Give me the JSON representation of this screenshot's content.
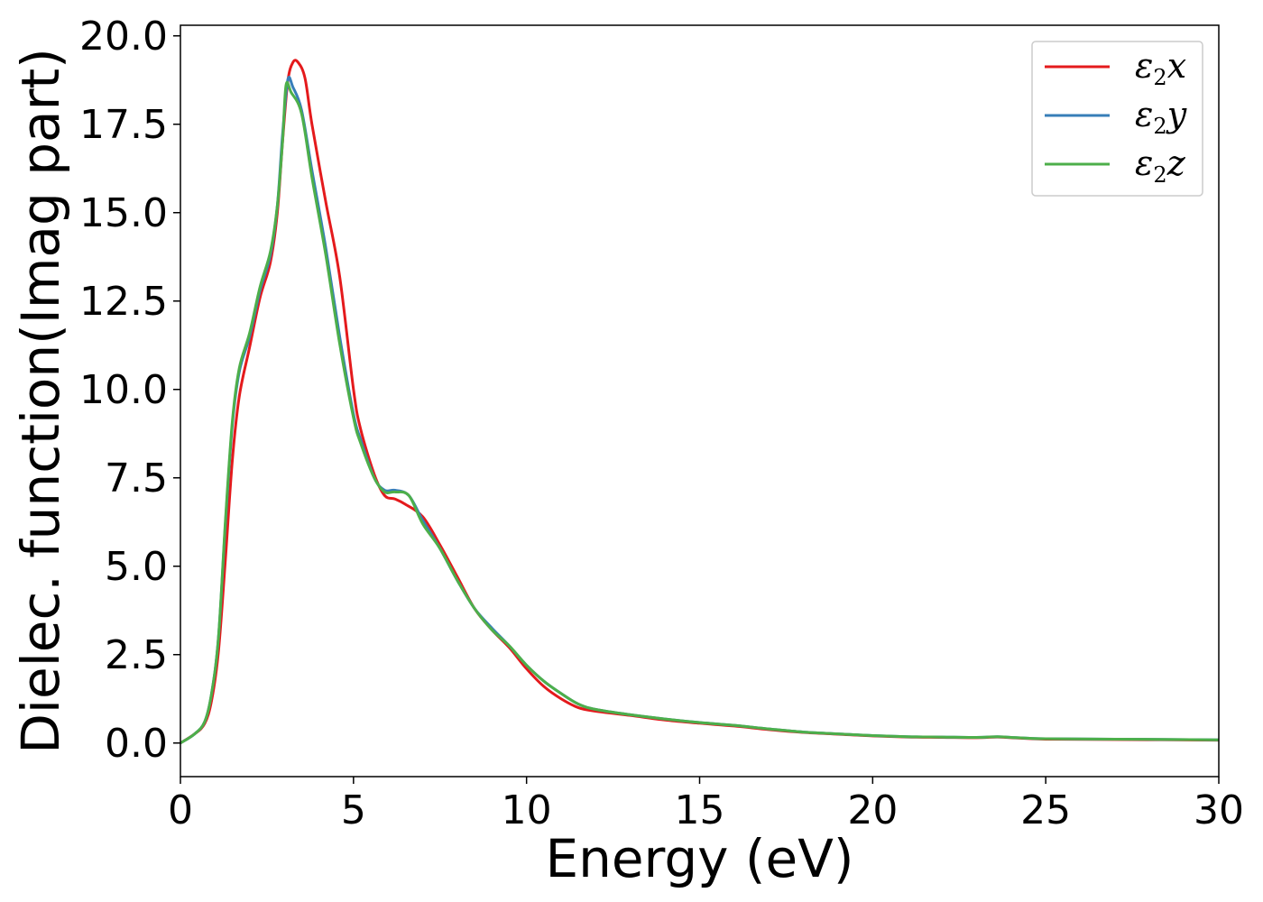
{
  "chart_data": {
    "type": "line",
    "title": "",
    "xlabel": "Energy (eV)",
    "ylabel": "Dielec. function(Imag part)",
    "xlim": [
      0,
      30
    ],
    "ylim": [
      -0.95,
      20.3
    ],
    "xticks": [
      0,
      5,
      10,
      15,
      20,
      25,
      30
    ],
    "xtick_labels": [
      "0",
      "5",
      "10",
      "15",
      "20",
      "25",
      "30"
    ],
    "yticks": [
      0.0,
      2.5,
      5.0,
      7.5,
      10.0,
      12.5,
      15.0,
      17.5,
      20.0
    ],
    "ytick_labels": [
      "0.0",
      "2.5",
      "5.0",
      "7.5",
      "10.0",
      "12.5",
      "15.0",
      "17.5",
      "20.0"
    ],
    "grid": false,
    "legend_position": "top-right",
    "series": [
      {
        "name": "x",
        "color": "#e41a1c",
        "points": [
          [
            0,
            0
          ],
          [
            0.4,
            0.25
          ],
          [
            0.7,
            0.55
          ],
          [
            0.9,
            1.2
          ],
          [
            1.1,
            2.6
          ],
          [
            1.3,
            5.2
          ],
          [
            1.5,
            8.0
          ],
          [
            1.7,
            9.8
          ],
          [
            2.0,
            11.2
          ],
          [
            2.3,
            12.6
          ],
          [
            2.6,
            13.6
          ],
          [
            2.8,
            15.0
          ],
          [
            2.95,
            17.0
          ],
          [
            3.1,
            18.7
          ],
          [
            3.25,
            19.25
          ],
          [
            3.4,
            19.25
          ],
          [
            3.6,
            18.8
          ],
          [
            3.8,
            17.5
          ],
          [
            4.2,
            15.3
          ],
          [
            4.6,
            13.2
          ],
          [
            5.0,
            10.0
          ],
          [
            5.2,
            8.9
          ],
          [
            5.6,
            7.6
          ],
          [
            5.9,
            7.0
          ],
          [
            6.2,
            6.9
          ],
          [
            6.5,
            6.75
          ],
          [
            7.0,
            6.4
          ],
          [
            7.5,
            5.6
          ],
          [
            8.0,
            4.7
          ],
          [
            8.5,
            3.8
          ],
          [
            9.0,
            3.2
          ],
          [
            9.5,
            2.7
          ],
          [
            10.0,
            2.1
          ],
          [
            10.5,
            1.6
          ],
          [
            11.0,
            1.25
          ],
          [
            11.5,
            1.0
          ],
          [
            12.0,
            0.9
          ],
          [
            13.0,
            0.78
          ],
          [
            14.0,
            0.65
          ],
          [
            15.0,
            0.56
          ],
          [
            16.0,
            0.48
          ],
          [
            17.0,
            0.38
          ],
          [
            18.0,
            0.3
          ],
          [
            19.0,
            0.25
          ],
          [
            20.0,
            0.2
          ],
          [
            21.0,
            0.17
          ],
          [
            22.0,
            0.16
          ],
          [
            23.0,
            0.15
          ],
          [
            23.6,
            0.17
          ],
          [
            24.0,
            0.15
          ],
          [
            25.0,
            0.11
          ],
          [
            27.0,
            0.1
          ],
          [
            30.0,
            0.08
          ]
        ]
      },
      {
        "name": "y",
        "color": "#377eb8",
        "points": [
          [
            0,
            0
          ],
          [
            0.4,
            0.25
          ],
          [
            0.7,
            0.6
          ],
          [
            0.9,
            1.4
          ],
          [
            1.1,
            3.0
          ],
          [
            1.3,
            6.2
          ],
          [
            1.5,
            9.0
          ],
          [
            1.7,
            10.5
          ],
          [
            2.0,
            11.5
          ],
          [
            2.3,
            12.8
          ],
          [
            2.6,
            13.8
          ],
          [
            2.8,
            15.2
          ],
          [
            2.95,
            17.2
          ],
          [
            3.1,
            18.75
          ],
          [
            3.25,
            18.55
          ],
          [
            3.5,
            17.9
          ],
          [
            3.8,
            16.2
          ],
          [
            4.2,
            14.0
          ],
          [
            4.6,
            11.5
          ],
          [
            5.0,
            9.3
          ],
          [
            5.2,
            8.6
          ],
          [
            5.6,
            7.5
          ],
          [
            5.9,
            7.15
          ],
          [
            6.2,
            7.15
          ],
          [
            6.6,
            7.0
          ],
          [
            7.0,
            6.3
          ],
          [
            7.5,
            5.5
          ],
          [
            8.0,
            4.6
          ],
          [
            8.5,
            3.8
          ],
          [
            9.0,
            3.25
          ],
          [
            9.5,
            2.75
          ],
          [
            10.0,
            2.2
          ],
          [
            10.5,
            1.75
          ],
          [
            11.0,
            1.4
          ],
          [
            11.5,
            1.1
          ],
          [
            12.0,
            0.95
          ],
          [
            13.0,
            0.8
          ],
          [
            14.0,
            0.68
          ],
          [
            15.0,
            0.58
          ],
          [
            16.0,
            0.5
          ],
          [
            17.0,
            0.4
          ],
          [
            18.0,
            0.31
          ],
          [
            19.0,
            0.26
          ],
          [
            20.0,
            0.21
          ],
          [
            21.0,
            0.18
          ],
          [
            22.0,
            0.17
          ],
          [
            23.0,
            0.16
          ],
          [
            23.6,
            0.18
          ],
          [
            24.0,
            0.16
          ],
          [
            25.0,
            0.12
          ],
          [
            27.0,
            0.11
          ],
          [
            30.0,
            0.09
          ]
        ]
      },
      {
        "name": "z",
        "color": "#4daf4a",
        "points": [
          [
            0,
            0
          ],
          [
            0.4,
            0.25
          ],
          [
            0.7,
            0.6
          ],
          [
            0.9,
            1.4
          ],
          [
            1.1,
            3.0
          ],
          [
            1.3,
            6.3
          ],
          [
            1.5,
            9.1
          ],
          [
            1.7,
            10.6
          ],
          [
            2.0,
            11.6
          ],
          [
            2.3,
            12.9
          ],
          [
            2.6,
            13.9
          ],
          [
            2.8,
            15.2
          ],
          [
            2.95,
            17.0
          ],
          [
            3.05,
            18.6
          ],
          [
            3.2,
            18.4
          ],
          [
            3.5,
            17.8
          ],
          [
            3.8,
            16.0
          ],
          [
            4.2,
            13.8
          ],
          [
            4.6,
            11.3
          ],
          [
            5.0,
            9.2
          ],
          [
            5.2,
            8.5
          ],
          [
            5.6,
            7.5
          ],
          [
            5.9,
            7.1
          ],
          [
            6.2,
            7.1
          ],
          [
            6.6,
            7.0
          ],
          [
            7.0,
            6.2
          ],
          [
            7.5,
            5.5
          ],
          [
            8.0,
            4.6
          ],
          [
            8.5,
            3.8
          ],
          [
            9.0,
            3.2
          ],
          [
            9.5,
            2.75
          ],
          [
            10.0,
            2.2
          ],
          [
            10.5,
            1.75
          ],
          [
            11.0,
            1.4
          ],
          [
            11.5,
            1.1
          ],
          [
            12.0,
            0.95
          ],
          [
            13.0,
            0.8
          ],
          [
            14.0,
            0.68
          ],
          [
            15.0,
            0.58
          ],
          [
            16.0,
            0.5
          ],
          [
            17.0,
            0.4
          ],
          [
            18.0,
            0.31
          ],
          [
            19.0,
            0.26
          ],
          [
            20.0,
            0.21
          ],
          [
            21.0,
            0.18
          ],
          [
            22.0,
            0.17
          ],
          [
            23.0,
            0.16
          ],
          [
            23.6,
            0.18
          ],
          [
            24.0,
            0.16
          ],
          [
            25.0,
            0.12
          ],
          [
            27.0,
            0.11
          ],
          [
            30.0,
            0.09
          ]
        ]
      }
    ]
  }
}
